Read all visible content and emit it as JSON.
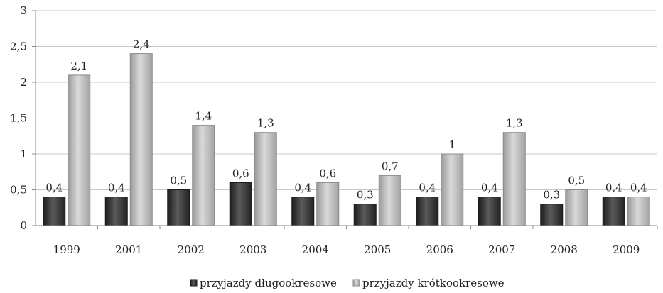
{
  "chart_data": {
    "type": "bar",
    "categories": [
      "1999",
      "2001",
      "2002",
      "2003",
      "2004",
      "2005",
      "2006",
      "2007",
      "2008",
      "2009"
    ],
    "series": [
      {
        "name": "przyjazdy długookresowe",
        "values": [
          0.4,
          0.4,
          0.5,
          0.6,
          0.4,
          0.3,
          0.4,
          0.4,
          0.3,
          0.4
        ],
        "labels": [
          "0,4",
          "0,4",
          "0,5",
          "0,6",
          "0,4",
          "0,3",
          "0,4",
          "0,4",
          "0,3",
          "0,4"
        ],
        "color": "#3a3a3a"
      },
      {
        "name": "przyjazdy krótkookresowe",
        "values": [
          2.1,
          2.4,
          1.4,
          1.3,
          0.6,
          0.7,
          1.0,
          1.3,
          0.5,
          0.4
        ],
        "labels": [
          "2,1",
          "2,4",
          "1,4",
          "1,3",
          "0,6",
          "0,7",
          "1",
          "1,3",
          "0,5",
          "0,4"
        ],
        "color": "#b8b8b8"
      }
    ],
    "yticks": [
      "0",
      "0,5",
      "1",
      "1,5",
      "2",
      "2,5",
      "3"
    ],
    "ytick_values": [
      0,
      0.5,
      1,
      1.5,
      2,
      2.5,
      3
    ],
    "ylim": [
      0,
      3
    ],
    "grid": true,
    "legend_position": "bottom"
  }
}
